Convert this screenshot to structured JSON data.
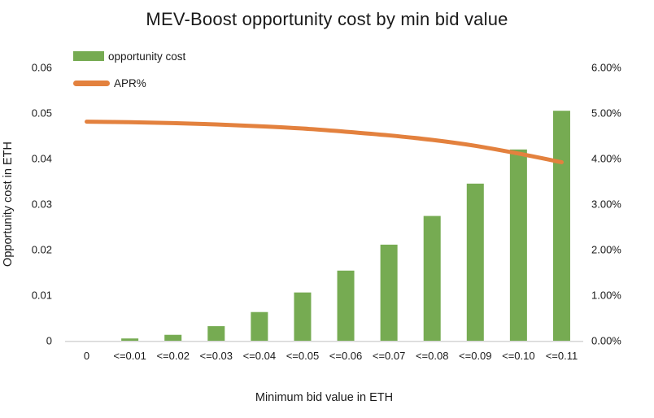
{
  "chart_data": {
    "type": "combo-bar-line",
    "title": "MEV-Boost opportunity cost by min bid value",
    "xlabel": "Minimum bid value in ETH",
    "ylabel_left": "Opportunity cost in ETH",
    "categories": [
      "0",
      "<=0.01",
      "<=0.02",
      "<=0.03",
      "<=0.04",
      "<=0.05",
      "<=0.06",
      "<=0.07",
      "<=0.08",
      "<=0.09",
      "<=0.10",
      "<=0.11"
    ],
    "series": [
      {
        "name": "opportunity cost",
        "type": "bar",
        "axis": "left",
        "color": "#76AB52",
        "values": [
          0,
          0.0005,
          0.0013,
          0.0032,
          0.0063,
          0.0106,
          0.0154,
          0.0211,
          0.0274,
          0.0345,
          0.042,
          0.0505
        ]
      },
      {
        "name": "APR%",
        "type": "line",
        "axis": "right",
        "color": "#E3813E",
        "values_percent": [
          4.81,
          4.8,
          4.78,
          4.75,
          4.71,
          4.66,
          4.59,
          4.51,
          4.41,
          4.28,
          4.11,
          3.92
        ]
      }
    ],
    "left_axis": {
      "lim": [
        0,
        0.06
      ],
      "ticks": [
        "0",
        "0.01",
        "0.02",
        "0.03",
        "0.04",
        "0.05",
        "0.06"
      ]
    },
    "right_axis": {
      "lim_percent": [
        0,
        6
      ],
      "ticks": [
        "0.00%",
        "1.00%",
        "2.00%",
        "3.00%",
        "4.00%",
        "5.00%",
        "6.00%"
      ]
    },
    "legend_position": "top-left",
    "grid": false,
    "axis_line_color": "#D6D6D6",
    "text_color": "#1A1A1A",
    "background_color": "#FFFFFF"
  }
}
